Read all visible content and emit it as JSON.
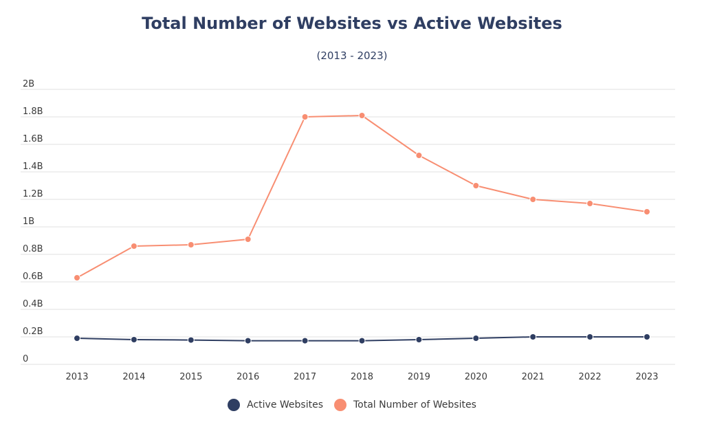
{
  "chart_data": {
    "type": "line",
    "title": "Total Number of Websites vs Active Websites",
    "subtitle": "(2013 - 2023)",
    "xlabel": "",
    "ylabel": "",
    "categories": [
      "2013",
      "2014",
      "2015",
      "2016",
      "2017",
      "2018",
      "2019",
      "2020",
      "2021",
      "2022",
      "2023"
    ],
    "ylim": [
      0,
      2
    ],
    "y_ticks": [
      0,
      0.2,
      0.4,
      0.6,
      0.8,
      1,
      1.2,
      1.4,
      1.6,
      1.8,
      2
    ],
    "y_tick_labels": [
      "0",
      "0.2B",
      "0.4B",
      "0.6B",
      "0.8B",
      "1B",
      "1.2B",
      "1.4B",
      "1.6B",
      "1.8B",
      "2B"
    ],
    "grid": true,
    "legend_position": "bottom",
    "series": [
      {
        "name": "Active Websites",
        "color": "#2f3e62",
        "values": [
          0.19,
          0.18,
          0.177,
          0.172,
          0.172,
          0.172,
          0.18,
          0.19,
          0.2,
          0.2,
          0.2
        ]
      },
      {
        "name": "Total Number of Websites",
        "color": "#f88e72",
        "values": [
          0.63,
          0.86,
          0.87,
          0.91,
          1.8,
          1.81,
          1.52,
          1.3,
          1.2,
          1.17,
          1.11
        ]
      }
    ]
  }
}
